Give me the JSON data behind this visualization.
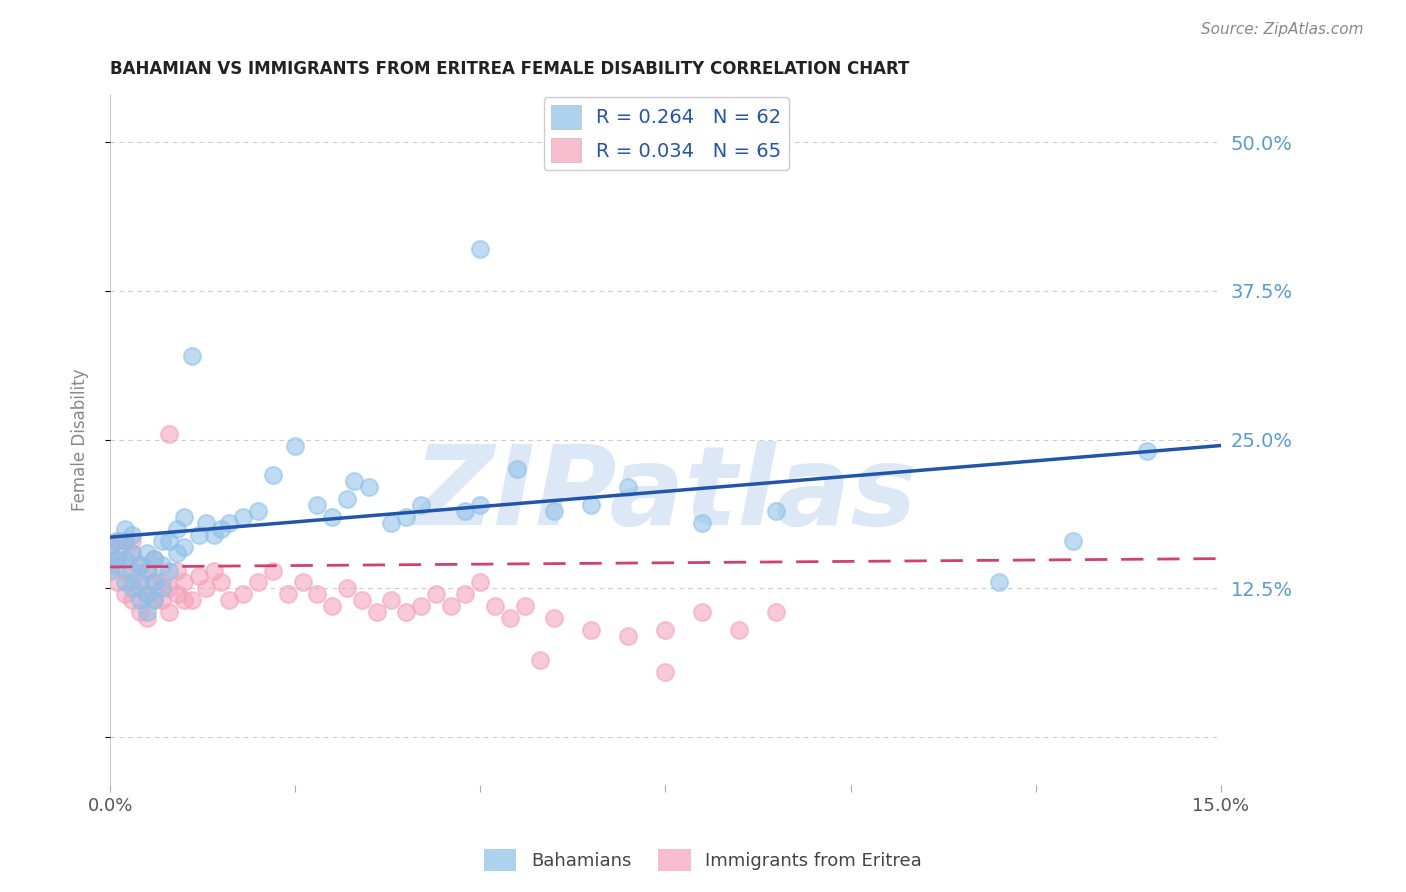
{
  "title": "BAHAMIAN VS IMMIGRANTS FROM ERITREA FEMALE DISABILITY CORRELATION CHART",
  "source_text": "Source: ZipAtlas.com",
  "ylabel": "Female Disability",
  "xlim": [
    0.0,
    0.15
  ],
  "ylim": [
    -0.04,
    0.54
  ],
  "yticks": [
    0.0,
    0.125,
    0.25,
    0.375,
    0.5
  ],
  "ytick_labels": [
    "",
    "12.5%",
    "25.0%",
    "37.5%",
    "50.0%"
  ],
  "xticks": [
    0.0,
    0.025,
    0.05,
    0.075,
    0.1,
    0.125,
    0.15
  ],
  "xtick_labels": [
    "0.0%",
    "",
    "",
    "",
    "",
    "",
    "15.0%"
  ],
  "watermark": "ZIPatlas",
  "legend_entries": [
    {
      "label": "R = 0.264   N = 62",
      "color": "#8bbfe8"
    },
    {
      "label": "R = 0.034   N = 65",
      "color": "#f4a0b8"
    }
  ],
  "blue_scatter": {
    "x": [
      0.0,
      0.0,
      0.001,
      0.001,
      0.001,
      0.002,
      0.002,
      0.002,
      0.002,
      0.003,
      0.003,
      0.003,
      0.003,
      0.004,
      0.004,
      0.004,
      0.005,
      0.005,
      0.005,
      0.005,
      0.006,
      0.006,
      0.006,
      0.007,
      0.007,
      0.007,
      0.008,
      0.008,
      0.009,
      0.009,
      0.01,
      0.01,
      0.011,
      0.012,
      0.013,
      0.014,
      0.015,
      0.016,
      0.018,
      0.02,
      0.022,
      0.025,
      0.028,
      0.03,
      0.032,
      0.033,
      0.035,
      0.038,
      0.04,
      0.042,
      0.048,
      0.05,
      0.055,
      0.06,
      0.065,
      0.05,
      0.07,
      0.08,
      0.09,
      0.12,
      0.13,
      0.14
    ],
    "y": [
      0.16,
      0.14,
      0.15,
      0.165,
      0.145,
      0.13,
      0.15,
      0.165,
      0.175,
      0.125,
      0.14,
      0.155,
      0.17,
      0.115,
      0.13,
      0.145,
      0.105,
      0.12,
      0.14,
      0.155,
      0.115,
      0.13,
      0.15,
      0.125,
      0.145,
      0.165,
      0.14,
      0.165,
      0.155,
      0.175,
      0.16,
      0.185,
      0.32,
      0.17,
      0.18,
      0.17,
      0.175,
      0.18,
      0.185,
      0.19,
      0.22,
      0.245,
      0.195,
      0.185,
      0.2,
      0.215,
      0.21,
      0.18,
      0.185,
      0.195,
      0.19,
      0.195,
      0.225,
      0.19,
      0.195,
      0.41,
      0.21,
      0.18,
      0.19,
      0.13,
      0.165,
      0.24
    ]
  },
  "pink_scatter": {
    "x": [
      0.0,
      0.0,
      0.001,
      0.001,
      0.001,
      0.002,
      0.002,
      0.002,
      0.003,
      0.003,
      0.003,
      0.003,
      0.004,
      0.004,
      0.004,
      0.005,
      0.005,
      0.005,
      0.006,
      0.006,
      0.006,
      0.007,
      0.007,
      0.008,
      0.008,
      0.008,
      0.009,
      0.009,
      0.01,
      0.01,
      0.011,
      0.012,
      0.013,
      0.014,
      0.015,
      0.016,
      0.018,
      0.02,
      0.022,
      0.024,
      0.026,
      0.028,
      0.03,
      0.032,
      0.034,
      0.036,
      0.038,
      0.04,
      0.042,
      0.044,
      0.046,
      0.048,
      0.05,
      0.052,
      0.054,
      0.056,
      0.058,
      0.06,
      0.065,
      0.07,
      0.075,
      0.08,
      0.085,
      0.09,
      0.075
    ],
    "y": [
      0.145,
      0.16,
      0.13,
      0.15,
      0.165,
      0.12,
      0.14,
      0.165,
      0.115,
      0.13,
      0.155,
      0.165,
      0.105,
      0.125,
      0.145,
      0.1,
      0.12,
      0.14,
      0.115,
      0.13,
      0.15,
      0.115,
      0.13,
      0.105,
      0.125,
      0.255,
      0.12,
      0.14,
      0.115,
      0.13,
      0.115,
      0.135,
      0.125,
      0.14,
      0.13,
      0.115,
      0.12,
      0.13,
      0.14,
      0.12,
      0.13,
      0.12,
      0.11,
      0.125,
      0.115,
      0.105,
      0.115,
      0.105,
      0.11,
      0.12,
      0.11,
      0.12,
      0.13,
      0.11,
      0.1,
      0.11,
      0.065,
      0.1,
      0.09,
      0.085,
      0.09,
      0.105,
      0.09,
      0.105,
      0.055
    ]
  },
  "blue_line": {
    "x": [
      0.0,
      0.15
    ],
    "y": [
      0.168,
      0.245
    ]
  },
  "pink_line": {
    "x": [
      0.0,
      0.15
    ],
    "y": [
      0.143,
      0.15
    ]
  },
  "blue_color": "#8bbfe8",
  "pink_color": "#f4a0b8",
  "blue_line_color": "#2255aa",
  "pink_line_color": "#d04070",
  "watermark_color": "#dce8f5",
  "background_color": "#ffffff",
  "grid_color": "#cccccc",
  "title_color": "#222222",
  "ytick_right_color": "#5b9bd5"
}
